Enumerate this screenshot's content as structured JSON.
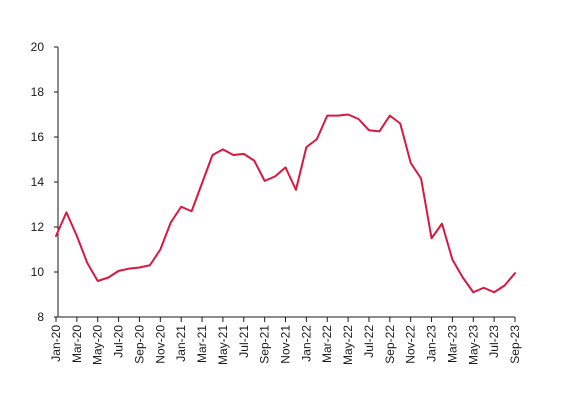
{
  "chart_data": {
    "type": "line",
    "title": "",
    "xlabel": "",
    "ylabel": "",
    "ylim": [
      8,
      20
    ],
    "yticks": [
      8,
      10,
      12,
      14,
      16,
      18,
      20
    ],
    "grid": false,
    "legend": "none",
    "line_color": "#d7193f",
    "x": [
      "Jan-20",
      "Feb-20",
      "Mar-20",
      "Apr-20",
      "May-20",
      "Jun-20",
      "Jul-20",
      "Aug-20",
      "Sep-20",
      "Oct-20",
      "Nov-20",
      "Dec-20",
      "Jan-21",
      "Feb-21",
      "Mar-21",
      "Apr-21",
      "May-21",
      "Jun-21",
      "Jul-21",
      "Aug-21",
      "Sep-21",
      "Oct-21",
      "Nov-21",
      "Dec-21",
      "Jan-22",
      "Feb-22",
      "Mar-22",
      "Apr-22",
      "May-22",
      "Jun-22",
      "Jul-22",
      "Aug-22",
      "Sep-22",
      "Oct-22",
      "Nov-22",
      "Dec-22",
      "Jan-23",
      "Feb-23",
      "Mar-23",
      "Apr-23",
      "May-23",
      "Jun-23",
      "Jul-23",
      "Aug-23",
      "Sep-23"
    ],
    "xtick_labels": [
      "Jan-20",
      "Mar-20",
      "May-20",
      "Jul-20",
      "Sep-20",
      "Nov-20",
      "Jan-21",
      "Mar-21",
      "May-21",
      "Jul-21",
      "Sep-21",
      "Nov-21",
      "Jan-22",
      "Mar-22",
      "May-22",
      "Jul-22",
      "Sep-22",
      "Nov-22",
      "Jan-23",
      "Mar-23",
      "May-23",
      "Jul-23",
      "Sep-23"
    ],
    "series": [
      {
        "values": [
          11.6,
          12.65,
          11.6,
          10.4,
          9.6,
          9.75,
          10.05,
          10.15,
          10.2,
          10.3,
          11.0,
          12.2,
          12.9,
          12.7,
          13.95,
          15.2,
          15.45,
          15.2,
          15.25,
          14.95,
          14.05,
          14.25,
          14.65,
          13.65,
          15.55,
          15.9,
          16.95,
          16.95,
          17.0,
          16.8,
          16.3,
          16.25,
          16.95,
          16.6,
          14.85,
          14.15,
          11.5,
          12.15,
          10.55,
          9.75,
          9.1,
          9.3,
          9.1,
          9.4,
          9.95
        ]
      }
    ]
  }
}
